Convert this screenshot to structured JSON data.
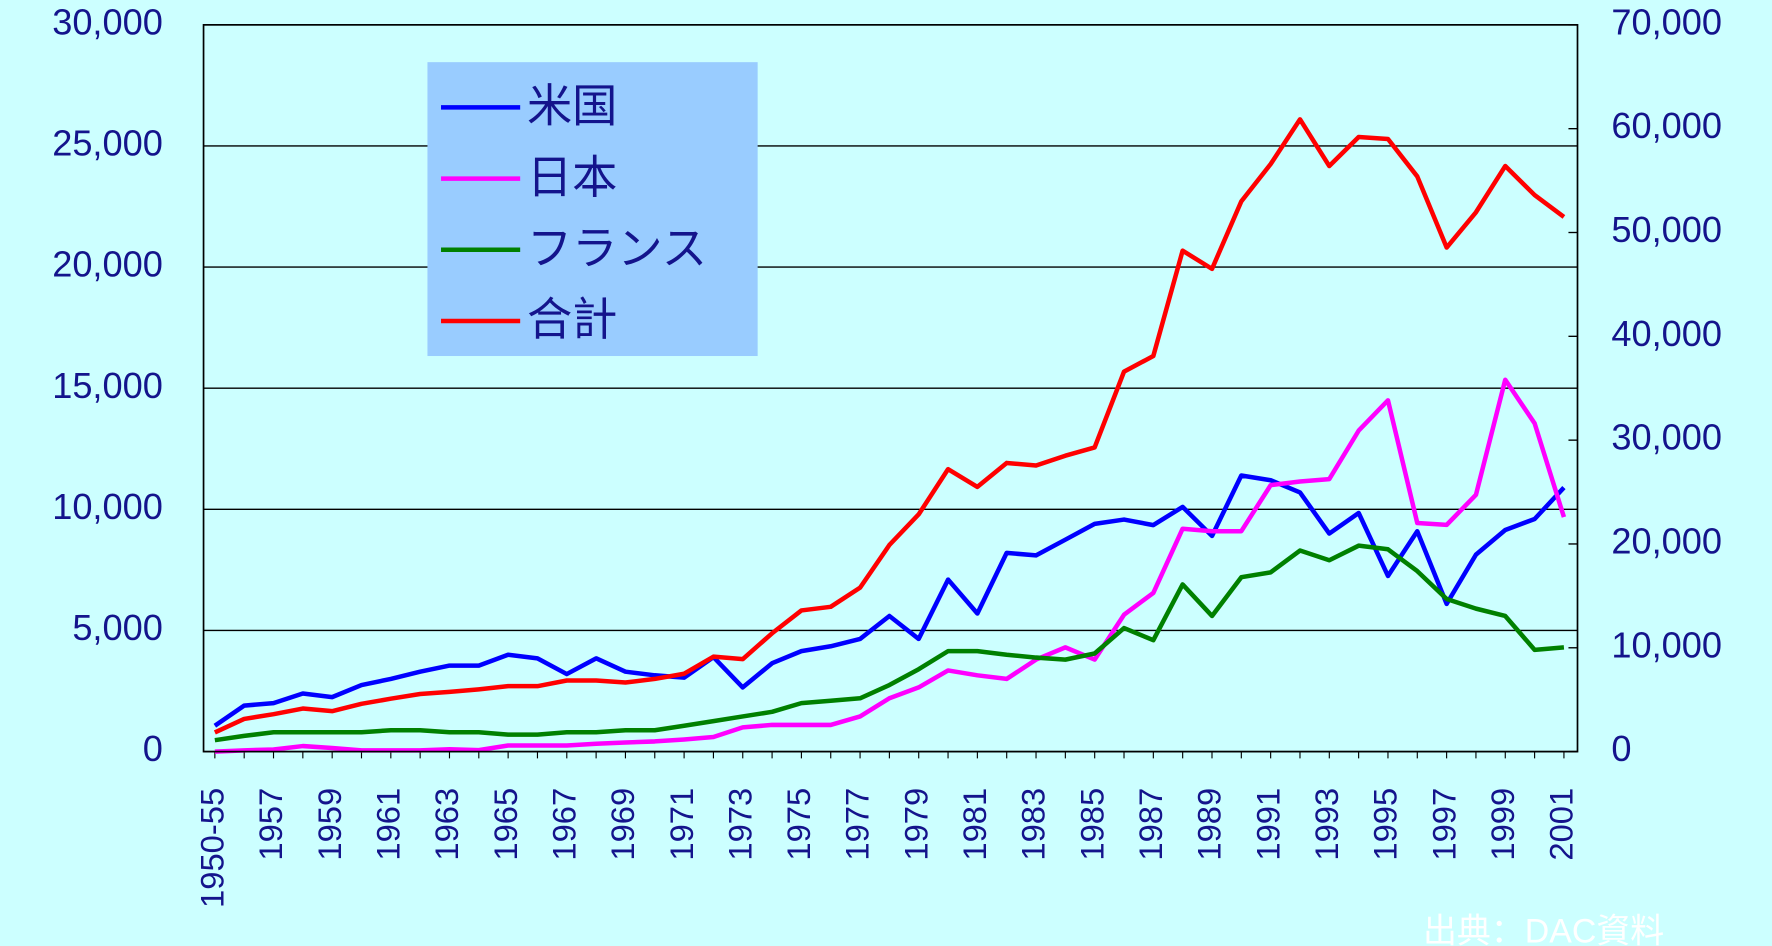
{
  "chart_data": {
    "type": "line",
    "categories": [
      "1950-55",
      null,
      "1957",
      null,
      "1959",
      null,
      "1961",
      null,
      "1963",
      null,
      "1965",
      null,
      "1967",
      null,
      "1969",
      null,
      "1971",
      null,
      "1973",
      null,
      "1975",
      null,
      "1977",
      null,
      "1979",
      null,
      "1981",
      null,
      "1983",
      null,
      "1985",
      null,
      "1987",
      null,
      "1989",
      null,
      "1991",
      null,
      "1993",
      null,
      "1995",
      null,
      "1997",
      null,
      "1999",
      null,
      "2001"
    ],
    "series": [
      {
        "name": "米国",
        "color": "#0000ff",
        "values": [
          1070,
          1900,
          2000,
          2400,
          2250,
          2750,
          3000,
          3300,
          3550,
          3550,
          4000,
          3850,
          3200,
          3850,
          3300,
          3150,
          3050,
          3900,
          2650,
          3650,
          4150,
          4350,
          4650,
          5600,
          4650,
          7100,
          5700,
          8200,
          8100,
          8750,
          9400,
          9580,
          9350,
          10100,
          8900,
          11400,
          11200,
          10700,
          9000,
          9850,
          7250,
          9100,
          6100,
          8130,
          9150,
          9600,
          10900
        ]
      },
      {
        "name": "日本",
        "color": "#ff00ff",
        "values": [
          0,
          50,
          90,
          230,
          150,
          50,
          50,
          50,
          100,
          60,
          250,
          250,
          250,
          320,
          380,
          420,
          500,
          600,
          1000,
          1100,
          1100,
          1100,
          1450,
          2200,
          2650,
          3350,
          3150,
          3000,
          3800,
          4300,
          3800,
          5650,
          6550,
          9200,
          9100,
          9100,
          11000,
          11150,
          11250,
          13250,
          14500,
          9440,
          9360,
          10600,
          15350,
          13550,
          9680
        ]
      },
      {
        "name": "フランス",
        "color": "#008000",
        "values": [
          470,
          650,
          800,
          800,
          800,
          800,
          880,
          880,
          800,
          800,
          700,
          700,
          800,
          800,
          880,
          880,
          1070,
          1260,
          1450,
          1640,
          2000,
          2100,
          2200,
          2750,
          3400,
          4150,
          4150,
          4000,
          3880,
          3800,
          4050,
          5100,
          4600,
          6900,
          5600,
          7200,
          7400,
          8300,
          7900,
          8500,
          8350,
          7450,
          6300,
          5900,
          5600,
          4200,
          4300
        ]
      },
      {
        "name": "合計",
        "color": "#ff0000",
        "axis": "y2",
        "values": [
          1850,
          3150,
          3600,
          4150,
          3900,
          4600,
          5100,
          5550,
          5750,
          6000,
          6300,
          6300,
          6850,
          6850,
          6650,
          7000,
          7500,
          9150,
          8900,
          11400,
          13600,
          13950,
          15800,
          19900,
          22850,
          27200,
          25500,
          27800,
          27550,
          28500,
          29300,
          36600,
          38100,
          48250,
          46500,
          53000,
          56600,
          60900,
          56400,
          59200,
          59000,
          55400,
          48550,
          51950,
          56400,
          53600,
          51500
        ]
      }
    ],
    "ylim": [
      0,
      30000
    ],
    "yticks": [
      0,
      {
        "value": 5000,
        "label": "5,000"
      },
      {
        "value": 10000,
        "label": "10,000"
      },
      {
        "value": 15000,
        "label": "15,000"
      },
      {
        "value": 20000,
        "label": "20,000"
      },
      {
        "value": 25000,
        "label": "25,000"
      },
      {
        "value": 30000,
        "label": "30,000"
      }
    ],
    "y2lim": [
      0,
      70000
    ],
    "y2ticks": [
      0,
      {
        "value": 10000,
        "label": "10,000"
      },
      {
        "value": 20000,
        "label": "20,000"
      },
      {
        "value": 30000,
        "label": "30,000"
      },
      {
        "value": 40000,
        "label": "40,000"
      },
      {
        "value": 50000,
        "label": "50,000"
      },
      {
        "value": 60000,
        "label": "60,000"
      },
      {
        "value": 70000,
        "label": "70,000"
      }
    ],
    "grid": true,
    "legend": "upper left",
    "source": "出典：DAC資料"
  }
}
